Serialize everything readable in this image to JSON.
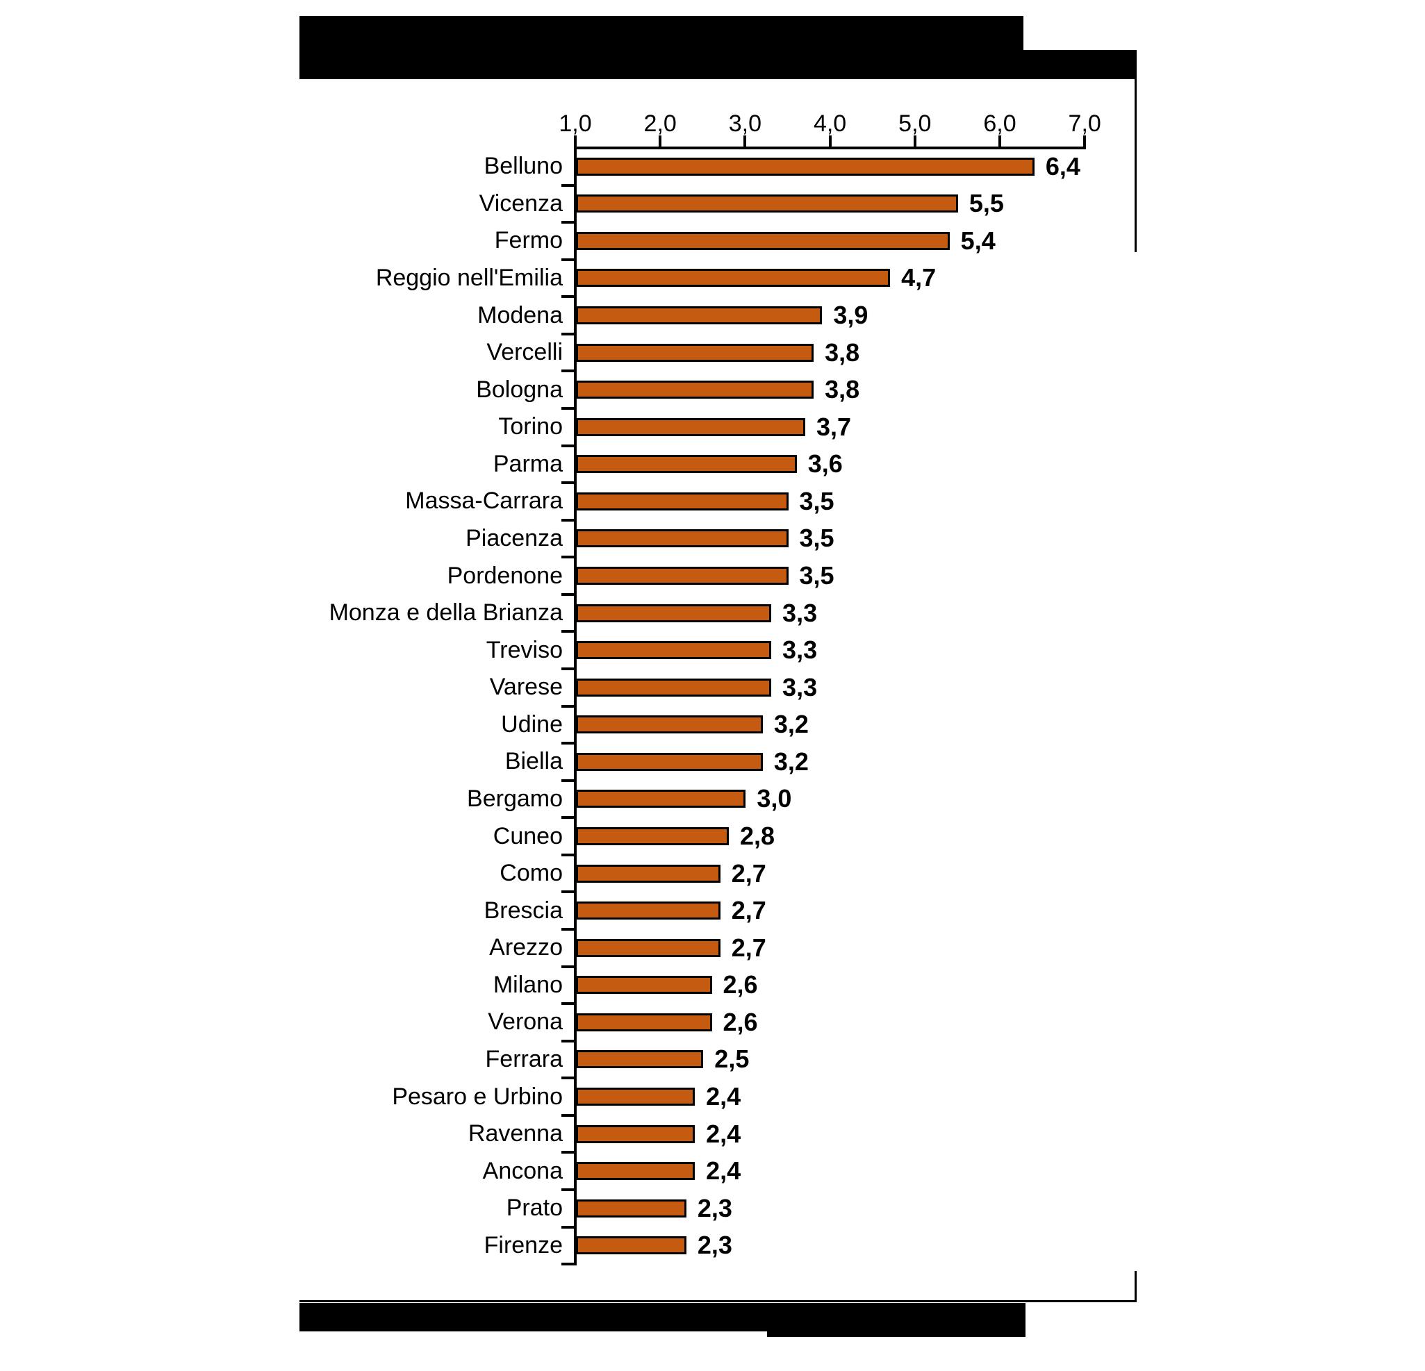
{
  "figure": {
    "background_color": "#ffffff",
    "redaction_color": "#000000",
    "redacted_blocks": [
      "title-block",
      "footer-source-block"
    ]
  },
  "chart_data": {
    "type": "bar",
    "orientation": "horizontal",
    "axis_position": "top",
    "grid": false,
    "legend": false,
    "title": "",
    "xlabel": "",
    "ylabel": "",
    "xlim": [
      1.0,
      7.0
    ],
    "x_tick_labels": [
      "1,0",
      "2,0",
      "3,0",
      "4,0",
      "5,0",
      "6,0",
      "7,0"
    ],
    "x_tick_values": [
      1.0,
      2.0,
      3.0,
      4.0,
      5.0,
      6.0,
      7.0
    ],
    "bar_color": "#C55A11",
    "bar_border_color": "#000000",
    "categories": [
      "Belluno",
      "Vicenza",
      "Fermo",
      "Reggio nell'Emilia",
      "Modena",
      "Vercelli",
      "Bologna",
      "Torino",
      "Parma",
      "Massa-Carrara",
      "Piacenza",
      "Pordenone",
      "Monza e della Brianza",
      "Treviso",
      "Varese",
      "Udine",
      "Biella",
      "Bergamo",
      "Cuneo",
      "Como",
      "Brescia",
      "Arezzo",
      "Milano",
      "Verona",
      "Ferrara",
      "Pesaro e Urbino",
      "Ravenna",
      "Ancona",
      "Prato",
      "Firenze"
    ],
    "values": [
      6.4,
      5.5,
      5.4,
      4.7,
      3.9,
      3.8,
      3.8,
      3.7,
      3.6,
      3.5,
      3.5,
      3.5,
      3.3,
      3.3,
      3.3,
      3.2,
      3.2,
      3.0,
      2.8,
      2.7,
      2.7,
      2.7,
      2.6,
      2.6,
      2.5,
      2.4,
      2.4,
      2.4,
      2.3,
      2.3
    ],
    "value_labels": [
      "6,4",
      "5,5",
      "5,4",
      "4,7",
      "3,9",
      "3,8",
      "3,8",
      "3,7",
      "3,6",
      "3,5",
      "3,5",
      "3,5",
      "3,3",
      "3,3",
      "3,3",
      "3,2",
      "3,2",
      "3,0",
      "2,8",
      "2,7",
      "2,7",
      "2,7",
      "2,6",
      "2,6",
      "2,5",
      "2,4",
      "2,4",
      "2,4",
      "2,3",
      "2,3"
    ]
  }
}
